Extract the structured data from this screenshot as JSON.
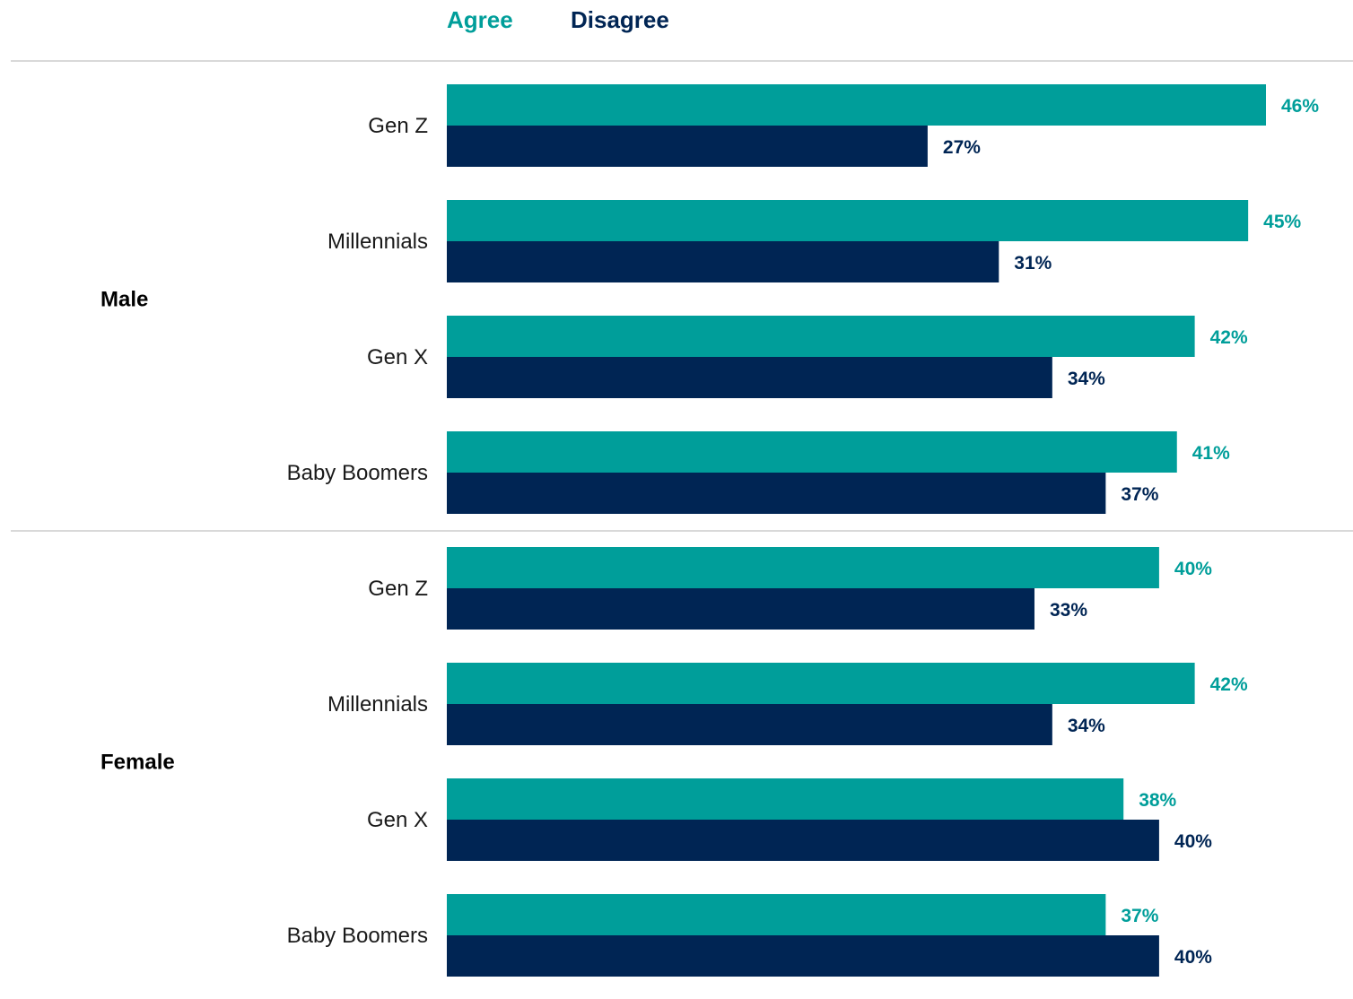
{
  "chart_data": {
    "type": "bar",
    "orientation": "horizontal",
    "title": "",
    "xlabel": "",
    "ylabel": "",
    "legend_position": "top",
    "grid": false,
    "xlim": [
      0,
      46
    ],
    "value_format": "{v}%",
    "series": [
      {
        "name": "Agree",
        "color": "#009e9a"
      },
      {
        "name": "Disagree",
        "color": "#002554"
      }
    ],
    "groups": [
      {
        "label": "Male",
        "rows": [
          {
            "category": "Gen Z",
            "values": [
              46,
              27
            ]
          },
          {
            "category": "Millennials",
            "values": [
              45,
              31
            ]
          },
          {
            "category": "Gen X",
            "values": [
              42,
              34
            ]
          },
          {
            "category": "Baby Boomers",
            "values": [
              41,
              37
            ]
          }
        ]
      },
      {
        "label": "Female",
        "rows": [
          {
            "category": "Gen Z",
            "values": [
              40,
              33
            ]
          },
          {
            "category": "Millennials",
            "values": [
              42,
              34
            ]
          },
          {
            "category": "Gen X",
            "values": [
              38,
              40
            ]
          },
          {
            "category": "Baby Boomers",
            "values": [
              37,
              40
            ]
          }
        ]
      }
    ]
  }
}
